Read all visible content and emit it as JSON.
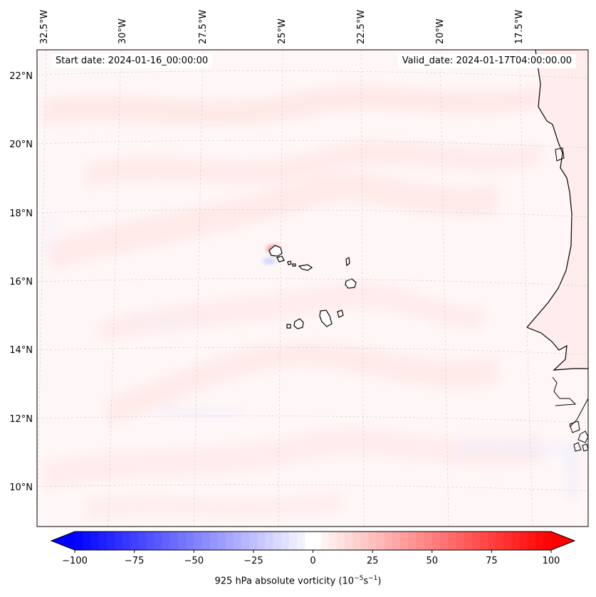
{
  "map": {
    "start_label": "Start date: 2024-01-16_00:00:00",
    "valid_label": "Valid_date: 2024-01-17T04:00:00.00",
    "lon_labels": [
      "32.5°W",
      "30°W",
      "27.5°W",
      "25°W",
      "22.5°W",
      "20°W",
      "17.5°W"
    ],
    "lat_labels": [
      "22°N",
      "20°N",
      "18°N",
      "16°N",
      "14°N",
      "12°N",
      "10°N"
    ],
    "colors": {
      "positive": "#ff0000",
      "negative": "#0000ff",
      "zero": "#ffffff",
      "coast": "#000000"
    }
  },
  "colorbar": {
    "ticks": [
      "−100",
      "−75",
      "−50",
      "−25",
      "0",
      "25",
      "50",
      "75",
      "100"
    ],
    "tick_values": [
      -100,
      -75,
      -50,
      -25,
      0,
      25,
      50,
      75,
      100
    ],
    "min": -100,
    "max": 100,
    "levels": 60,
    "label_main": "925 hPa absolute vorticity (10",
    "label_exp1": "−5",
    "label_mid": "s",
    "label_exp2": "−1",
    "label_end": ")"
  }
}
